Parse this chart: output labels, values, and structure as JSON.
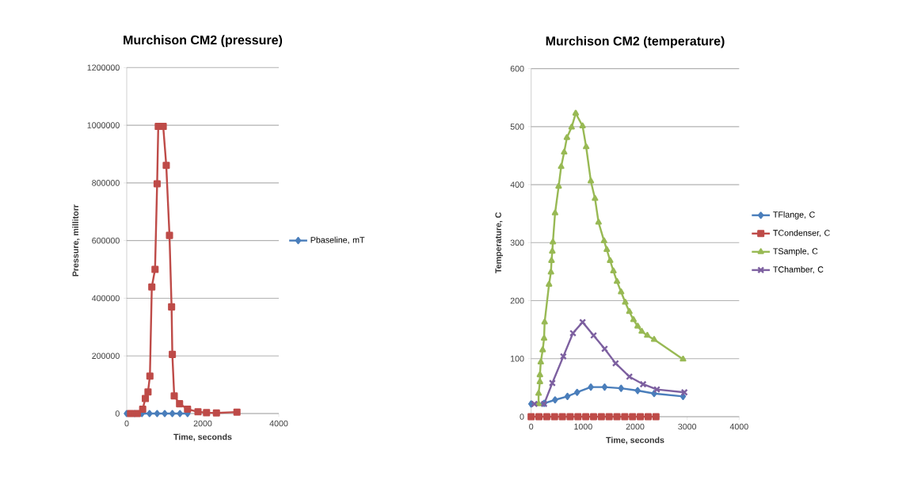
{
  "chart_data": [
    {
      "type": "line",
      "title": "Murchison CM2 (pressure)",
      "xlabel": "Time, seconds",
      "ylabel": "Pressure, millitorr",
      "xlim": [
        0,
        4000
      ],
      "ylim": [
        0,
        1200000
      ],
      "xticks": [
        0,
        2000,
        4000
      ],
      "yticks": [
        0,
        200000,
        400000,
        600000,
        800000,
        1000000,
        1200000
      ],
      "grid": "y",
      "legend": "right",
      "series": [
        {
          "name": "Pbaseline, mT",
          "color": "#4a7ebb",
          "marker": "diamond",
          "x": [
            0,
            200,
            400,
            600,
            800,
            1000,
            1200,
            1400,
            1600
          ],
          "values": [
            0,
            0,
            0,
            0,
            0,
            0,
            0,
            0,
            0
          ]
        },
        {
          "color": "#be4b48",
          "marker": "square",
          "x": [
            100,
            280,
            420,
            490,
            560,
            610,
            660,
            745,
            800,
            830,
            960,
            1040,
            1125,
            1180,
            1200,
            1250,
            1390,
            1600,
            1875,
            2100,
            2360,
            2900
          ],
          "values": [
            0,
            0,
            15000,
            52000,
            75000,
            130000,
            439000,
            500000,
            797000,
            996000,
            996000,
            861000,
            618000,
            370000,
            205000,
            61000,
            34000,
            15000,
            6000,
            3000,
            2000,
            5000
          ]
        }
      ]
    },
    {
      "type": "line",
      "title": "Murchison CM2 (temperature)",
      "xlabel": "Time, seconds",
      "ylabel": "Temperature, C",
      "xlim": [
        0,
        4000
      ],
      "ylim": [
        0,
        600
      ],
      "xticks": [
        0,
        1000,
        2000,
        3000,
        4000
      ],
      "yticks": [
        0,
        100,
        200,
        300,
        400,
        500,
        600
      ],
      "grid": "y",
      "legend": "right",
      "series": [
        {
          "name": "TFlange, C",
          "color": "#4a7ebb",
          "marker": "diamond",
          "x": [
            0,
            249,
            460,
            698,
            884,
            1148,
            1413,
            1730,
            2048,
            2365,
            2921
          ],
          "values": [
            22,
            23,
            29,
            35,
            42,
            51,
            51,
            49,
            45,
            40,
            35
          ]
        },
        {
          "name": "TCondenser, C",
          "color": "#be4b48",
          "marker": "square",
          "x": [
            0,
            150,
            300,
            450,
            600,
            750,
            900,
            1050,
            1200,
            1350,
            1500,
            1650,
            1800,
            1950,
            2100,
            2250,
            2400
          ],
          "values": [
            0,
            0,
            0,
            0,
            0,
            0,
            0,
            0,
            0,
            0,
            0,
            0,
            0,
            0,
            0,
            0,
            0
          ]
        },
        {
          "name": "TSample, C",
          "color": "#98b954",
          "marker": "triangle",
          "x": [
            143,
            143,
            169,
            169,
            185,
            222,
            249,
            259,
            344,
            381,
            392,
            407,
            418,
            460,
            529,
            577,
            635,
            688,
            778,
            857,
            989,
            1058,
            1148,
            1228,
            1296,
            1402,
            1455,
            1519,
            1582,
            1651,
            1730,
            1810,
            1889,
            1968,
            2048,
            2127,
            2233,
            2365,
            2921
          ],
          "values": [
            22,
            40,
            60,
            72,
            94,
            115,
            135,
            163,
            228,
            249,
            269,
            285,
            301,
            351,
            397,
            431,
            456,
            481,
            499,
            523,
            501,
            465,
            406,
            376,
            335,
            303,
            288,
            269,
            251,
            233,
            215,
            197,
            181,
            167,
            156,
            147,
            140,
            133,
            99
          ]
        },
        {
          "name": "TChamber, C",
          "color": "#7d60a0",
          "marker": "cross",
          "x": [
            63,
            249,
            407,
            619,
            804,
            989,
            1201,
            1413,
            1624,
            1889,
            2153,
            2418,
            2947
          ],
          "values": [
            22,
            22,
            58,
            104,
            144,
            163,
            140,
            117,
            92,
            69,
            56,
            47,
            42
          ]
        }
      ]
    }
  ]
}
